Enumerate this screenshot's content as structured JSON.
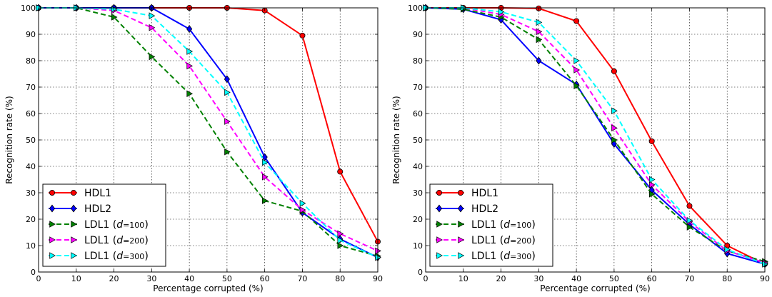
{
  "chart_data": [
    {
      "type": "line",
      "xlabel": "Percentage corrupted (%)",
      "ylabel": "Recognition rate (%)",
      "xlim": [
        0,
        90
      ],
      "ylim": [
        0,
        100
      ],
      "x_ticks": [
        0,
        10,
        20,
        30,
        40,
        50,
        60,
        70,
        80,
        90
      ],
      "y_ticks": [
        0,
        10,
        20,
        30,
        40,
        50,
        60,
        70,
        80,
        90,
        100
      ],
      "grid": true,
      "legend_position": "lower-left",
      "x": [
        0,
        10,
        20,
        30,
        40,
        50,
        60,
        70,
        80,
        90
      ],
      "series": [
        {
          "name": "HDL1",
          "label_main": "HDL1",
          "label_param": "",
          "color": "#ff0000",
          "linestyle": "solid",
          "marker": "circle",
          "values": [
            100,
            100,
            100,
            100,
            100,
            100,
            99,
            89.5,
            38,
            11.5
          ]
        },
        {
          "name": "HDL2",
          "label_main": "HDL2",
          "label_param": "",
          "color": "#0000ff",
          "linestyle": "solid",
          "marker": "diamond",
          "values": [
            100,
            100,
            100,
            100,
            92,
            73,
            43.5,
            22.5,
            12.5,
            5.5
          ]
        },
        {
          "name": "LDL1 (d=100)",
          "label_main": "LDL1 (",
          "label_param": "d=100",
          "color": "#008000",
          "linestyle": "dashed",
          "marker": "triangle-right",
          "values": [
            100,
            100,
            96.5,
            81.5,
            67.5,
            45.5,
            27,
            23,
            10,
            6
          ]
        },
        {
          "name": "LDL1 (d=200)",
          "label_main": "LDL1 (",
          "label_param": "d=200",
          "color": "#ff00ff",
          "linestyle": "dashed",
          "marker": "triangle-right",
          "values": [
            100,
            100,
            99,
            92.5,
            78,
            57,
            36,
            23.5,
            14.5,
            8
          ]
        },
        {
          "name": "LDL1 (d=300)",
          "label_main": "LDL1 (",
          "label_param": "d=300",
          "color": "#00ffff",
          "linestyle": "dashed",
          "marker": "triangle-right",
          "values": [
            100,
            100,
            99.5,
            97,
            83.5,
            68,
            41.5,
            26,
            12,
            5.5
          ]
        }
      ]
    },
    {
      "type": "line",
      "xlabel": "Percentage corrupted (%)",
      "ylabel": "Recognition rate (%)",
      "xlim": [
        0,
        90
      ],
      "ylim": [
        0,
        100
      ],
      "x_ticks": [
        0,
        10,
        20,
        30,
        40,
        50,
        60,
        70,
        80,
        90
      ],
      "y_ticks": [
        0,
        10,
        20,
        30,
        40,
        50,
        60,
        70,
        80,
        90,
        100
      ],
      "grid": true,
      "legend_position": "lower-left",
      "x": [
        0,
        10,
        20,
        30,
        40,
        50,
        60,
        70,
        80,
        90
      ],
      "series": [
        {
          "name": "HDL1",
          "label_main": "HDL1",
          "label_param": "",
          "color": "#ff0000",
          "linestyle": "solid",
          "marker": "circle",
          "values": [
            100,
            100,
            100,
            99.8,
            95,
            76,
            49.5,
            25,
            10,
            3
          ]
        },
        {
          "name": "HDL2",
          "label_main": "HDL2",
          "label_param": "",
          "color": "#0000ff",
          "linestyle": "solid",
          "marker": "diamond",
          "values": [
            100,
            99.5,
            95.5,
            80,
            71,
            48.5,
            31,
            18,
            7,
            3
          ]
        },
        {
          "name": "LDL1 (d=100)",
          "label_main": "LDL1 (",
          "label_param": "d=100",
          "color": "#008000",
          "linestyle": "dashed",
          "marker": "triangle-right",
          "values": [
            100,
            99.5,
            96.5,
            88,
            70.5,
            50,
            29.5,
            17,
            8,
            4
          ]
        },
        {
          "name": "LDL1 (d=200)",
          "label_main": "LDL1 (",
          "label_param": "d=200",
          "color": "#ff00ff",
          "linestyle": "dashed",
          "marker": "triangle-right",
          "values": [
            100,
            100,
            97.5,
            91,
            76.5,
            54.5,
            33,
            19,
            8,
            3.5
          ]
        },
        {
          "name": "LDL1 (d=300)",
          "label_main": "LDL1 (",
          "label_param": "d=300",
          "color": "#00ffff",
          "linestyle": "dashed",
          "marker": "triangle-right",
          "values": [
            100,
            100,
            98.5,
            94.5,
            80,
            61,
            35,
            19.5,
            8.5,
            3
          ]
        }
      ]
    }
  ]
}
